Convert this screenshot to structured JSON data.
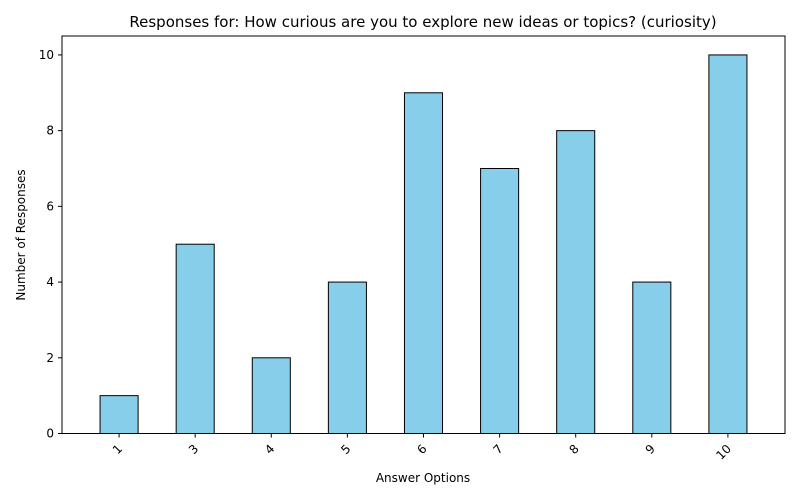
{
  "chart_data": {
    "type": "bar",
    "title": "Responses for: How curious are you to explore new ideas or topics? (curiosity)",
    "xlabel": "Answer Options",
    "ylabel": "Number of Responses",
    "categories": [
      "1",
      "3",
      "4",
      "5",
      "6",
      "7",
      "8",
      "9",
      "10"
    ],
    "values": [
      1,
      5,
      2,
      4,
      9,
      7,
      8,
      4,
      10
    ],
    "ylim": [
      0,
      10.5
    ],
    "yticks": [
      0,
      2,
      4,
      6,
      8,
      10
    ],
    "grid": false,
    "legend": "none",
    "bar_color": "#87CEEB",
    "bar_edge_color": "#000000",
    "x_tick_rotation": 45
  }
}
